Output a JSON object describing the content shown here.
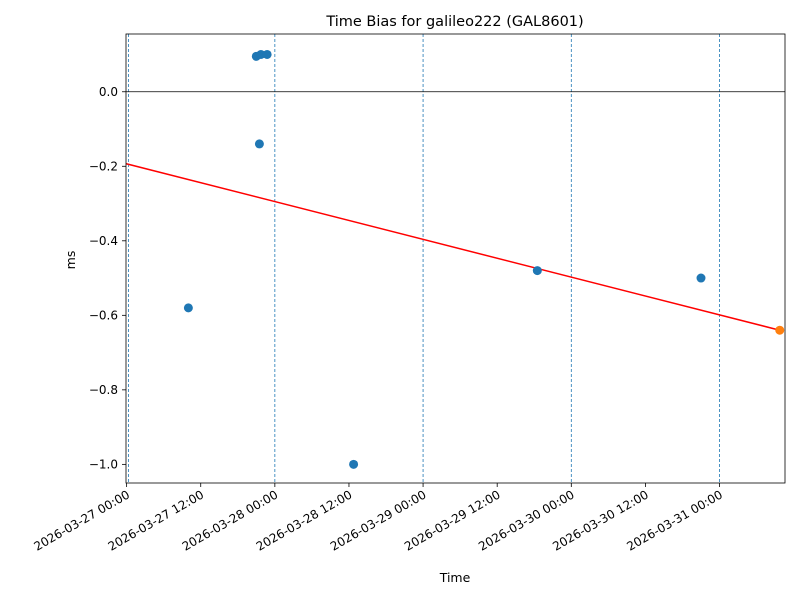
{
  "chart_data": {
    "type": "scatter",
    "title": "Time Bias for galileo222 (GAL8601)",
    "xlabel": "Time",
    "ylabel": "ms",
    "x_ticks": [
      "2026-03-27 00:00",
      "2026-03-27 12:00",
      "2026-03-28 00:00",
      "2026-03-28 12:00",
      "2026-03-29 00:00",
      "2026-03-29 12:00",
      "2026-03-30 00:00",
      "2026-03-30 12:00",
      "2026-03-31 00:00"
    ],
    "y_ticks": [
      "−1.0",
      "−0.8",
      "−0.6",
      "−0.4",
      "−0.2",
      "0.0"
    ],
    "xlim": [
      "2026-03-26 23:54",
      "2026-03-31 10:36"
    ],
    "ylim": [
      -1.05,
      0.155
    ],
    "zero_line": 0.0,
    "vertical_day_lines": [
      "2026-03-27 00:18",
      "2026-03-28 00:00",
      "2026-03-29 00:00",
      "2026-03-30 00:00",
      "2026-03-31 00:00"
    ],
    "series": [
      {
        "color": "#1f77b4",
        "points": [
          {
            "x": "2026-03-27 10:00",
            "y": -0.58
          },
          {
            "x": "2026-03-27 21:00",
            "y": 0.095
          },
          {
            "x": "2026-03-27 21:30",
            "y": -0.14
          },
          {
            "x": "2026-03-27 21:45",
            "y": 0.1
          },
          {
            "x": "2026-03-27 22:45",
            "y": 0.1
          },
          {
            "x": "2026-03-28 12:45",
            "y": -1.0
          },
          {
            "x": "2026-03-29 18:30",
            "y": -0.48
          },
          {
            "x": "2026-03-30 21:00",
            "y": -0.5
          }
        ]
      },
      {
        "color": "#ff7f0e",
        "points": [
          {
            "x": "2026-03-31 09:45",
            "y": -0.64
          }
        ]
      }
    ],
    "trend_line": {
      "color": "#ff0000",
      "points": [
        {
          "x": "2026-03-26 23:54",
          "y": -0.193
        },
        {
          "x": "2026-03-31 09:45",
          "y": -0.64
        }
      ]
    }
  }
}
